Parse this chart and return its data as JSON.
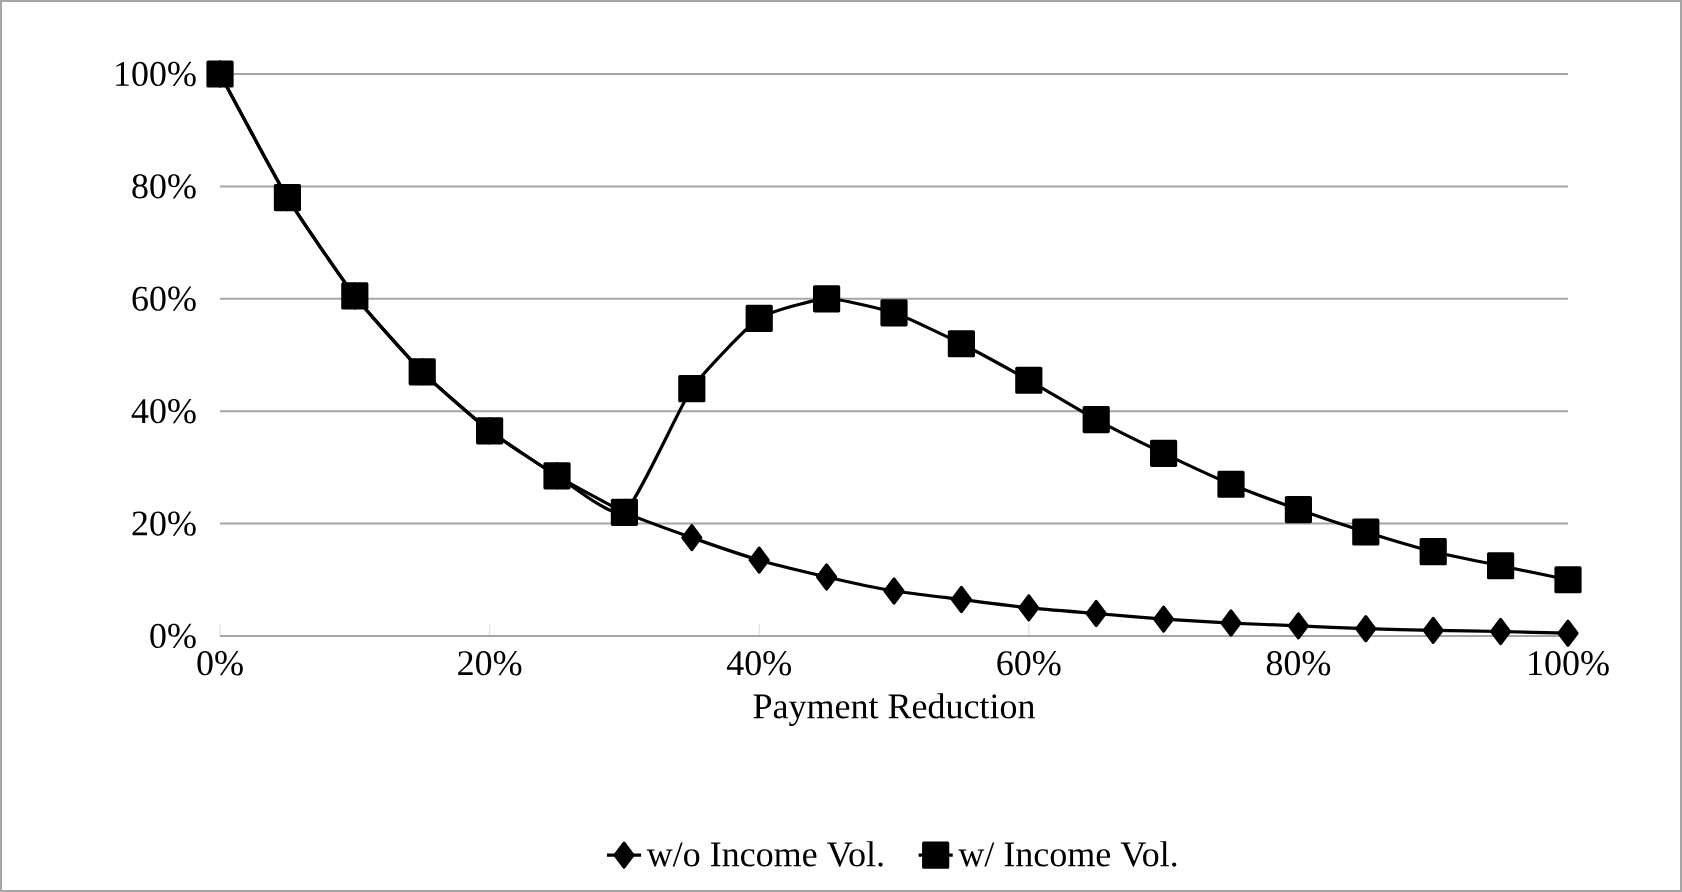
{
  "chart_data": {
    "type": "line",
    "xlabel": "Payment Reduction",
    "x": [
      0,
      5,
      10,
      15,
      20,
      25,
      30,
      35,
      40,
      45,
      50,
      55,
      60,
      65,
      70,
      75,
      80,
      85,
      90,
      95,
      100
    ],
    "series": [
      {
        "name": "w/o Income Vol.",
        "color": "#000000",
        "marker": "diamond",
        "values": [
          100,
          78,
          60.5,
          47,
          36.5,
          28.5,
          22,
          17.5,
          13.5,
          10.5,
          8,
          6.5,
          5,
          4,
          3,
          2.3,
          1.8,
          1.3,
          1,
          0.8,
          0.5
        ]
      },
      {
        "name": "w/ Income Vol.",
        "color": "#000000",
        "marker": "square",
        "values": [
          100,
          78,
          60.5,
          47,
          36.5,
          28.5,
          22,
          44,
          56.5,
          60,
          57.5,
          52,
          45.5,
          38.5,
          32.5,
          27,
          22.5,
          18.5,
          15,
          12.5,
          10
        ]
      }
    ],
    "xlim": [
      0,
      100
    ],
    "ylim": [
      0,
      100
    ],
    "xticks": [
      {
        "value": 0,
        "label": "0%"
      },
      {
        "value": 20,
        "label": "20%"
      },
      {
        "value": 40,
        "label": "40%"
      },
      {
        "value": 60,
        "label": "60%"
      },
      {
        "value": 80,
        "label": "80%"
      },
      {
        "value": 100,
        "label": "100%"
      }
    ],
    "yticks": [
      {
        "value": 0,
        "label": "0%"
      },
      {
        "value": 20,
        "label": "20%"
      },
      {
        "value": 40,
        "label": "40%"
      },
      {
        "value": 60,
        "label": "60%"
      },
      {
        "value": 80,
        "label": "80%"
      },
      {
        "value": 100,
        "label": "100%"
      }
    ],
    "grid": "y",
    "legend": "bottom",
    "line_style": "solid"
  }
}
